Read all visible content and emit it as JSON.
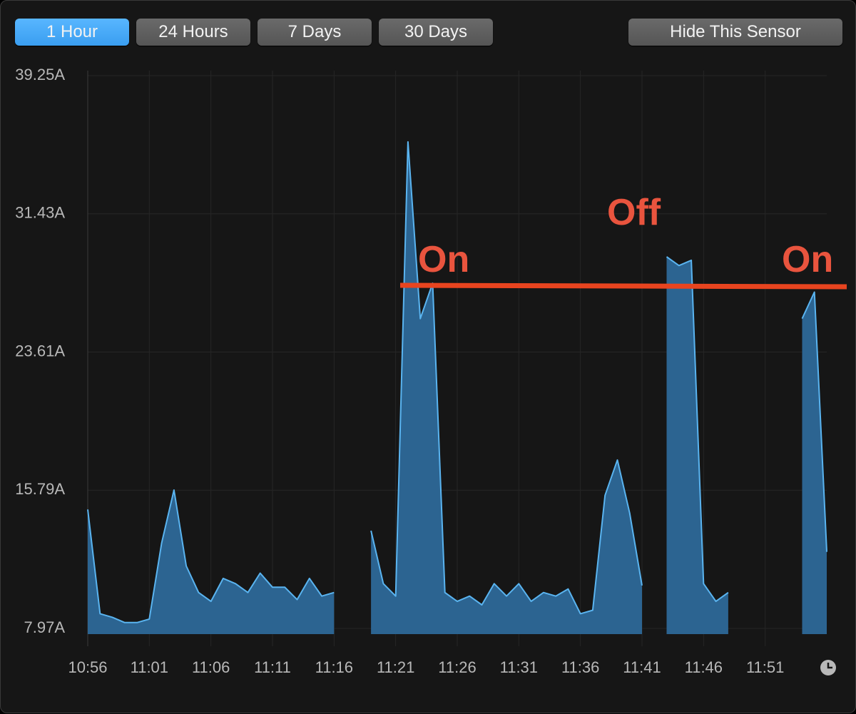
{
  "buttons": [
    "1 Hour",
    "24 Hours",
    "7 Days",
    "30 Days"
  ],
  "hide_button": "Hide This Sensor",
  "chart_data": {
    "type": "area",
    "annotations": [
      "On",
      "Off",
      "On"
    ],
    "x": [
      "10:56",
      "10:57",
      "10:58",
      "10:59",
      "11:00",
      "11:01",
      "11:02",
      "11:03",
      "11:04",
      "11:05",
      "11:06",
      "11:07",
      "11:08",
      "11:09",
      "11:10",
      "11:11",
      "11:12",
      "11:13",
      "11:14",
      "11:15",
      "11:16",
      "11:17",
      "11:18",
      "11:19",
      "11:20",
      "11:21",
      "11:22",
      "11:23",
      "11:24",
      "11:25",
      "11:26",
      "11:27",
      "11:28",
      "11:29",
      "11:30",
      "11:31",
      "11:32",
      "11:33",
      "11:34",
      "11:35",
      "11:36",
      "11:37",
      "11:38",
      "11:39",
      "11:40",
      "11:41",
      "11:42",
      "11:43",
      "11:44",
      "11:45",
      "11:46",
      "11:47",
      "11:48",
      "11:49",
      "11:50",
      "11:51",
      "11:52",
      "11:53",
      "11:54",
      "11:55",
      "11:56"
    ],
    "series": [
      {
        "color": "#5ab4f0",
        "fill": "#2c6491",
        "values": [
          14.7,
          8.8,
          8.6,
          8.3,
          8.3,
          8.5,
          12.8,
          15.8,
          11.5,
          10.0,
          9.5,
          10.8,
          10.5,
          10.0,
          11.1,
          10.3,
          10.3,
          9.6,
          10.8,
          9.8,
          10.0,
          null,
          null,
          13.5,
          10.5,
          9.8,
          35.5,
          25.5,
          27.5,
          10.0,
          9.5,
          9.8,
          9.3,
          10.5,
          9.8,
          10.5,
          9.5,
          10.0,
          9.8,
          10.2,
          8.8,
          9.0,
          15.5,
          17.5,
          14.5,
          10.4,
          null,
          29.0,
          28.5,
          28.8,
          10.5,
          9.5,
          10.0,
          null,
          null,
          null,
          null,
          null,
          25.5,
          27.0,
          12.3
        ]
      }
    ],
    "xlim": [
      "10:56",
      "11:56"
    ],
    "xticks": [
      "10:56",
      "11:01",
      "11:06",
      "11:11",
      "11:16",
      "11:21",
      "11:26",
      "11:31",
      "11:36",
      "11:41",
      "11:46",
      "11:51"
    ],
    "ylim": [
      7.97,
      39.25
    ],
    "yticks": [
      {
        "value": 7.97,
        "label": "7.97A"
      },
      {
        "value": 15.79,
        "label": "15.79A"
      },
      {
        "value": 23.61,
        "label": "23.61A"
      },
      {
        "value": 31.43,
        "label": "31.43A"
      },
      {
        "value": 39.25,
        "label": "39.25A"
      }
    ],
    "grid": true
  }
}
